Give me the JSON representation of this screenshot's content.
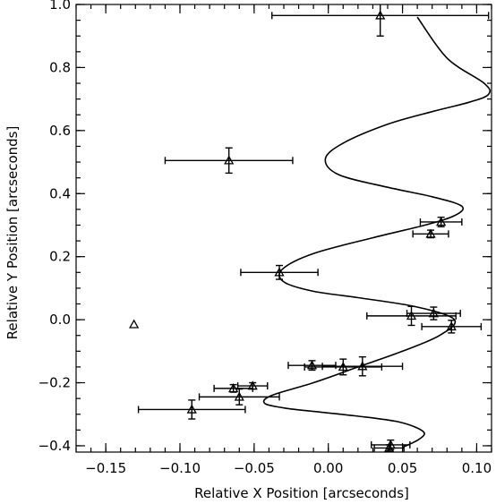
{
  "chart_data": {
    "type": "scatter",
    "xlabel": "Relative X Position [arcseconds]",
    "ylabel": "Relative Y Position [arcseconds]",
    "xlim": [
      -0.17,
      0.11
    ],
    "ylim": [
      -0.42,
      1.0
    ],
    "x_ticks": [
      -0.15,
      -0.1,
      -0.05,
      0.0,
      0.05,
      0.1
    ],
    "x_tick_labels": [
      "−0.15",
      "−0.10",
      "−0.05",
      "0.00",
      "0.05",
      "0.10"
    ],
    "y_ticks": [
      -0.4,
      -0.2,
      0.0,
      0.2,
      0.4,
      0.6,
      0.8,
      1.0
    ],
    "y_tick_labels": [
      "−0.4",
      "−0.2",
      "0.0",
      "0.2",
      "0.4",
      "0.6",
      "0.8",
      "1.0"
    ],
    "grid": false,
    "legend": "none",
    "points": [
      {
        "x": 0.035,
        "y": 0.965,
        "xerr": 0.073,
        "yerr": 0.065
      },
      {
        "x": -0.067,
        "y": 0.505,
        "xerr": 0.043,
        "yerr": 0.04
      },
      {
        "x": 0.076,
        "y": 0.31,
        "xerr": 0.014,
        "yerr": 0.015
      },
      {
        "x": 0.069,
        "y": 0.272,
        "xerr": 0.012,
        "yerr": 0.012
      },
      {
        "x": -0.033,
        "y": 0.15,
        "xerr": 0.026,
        "yerr": 0.022
      },
      {
        "x": 0.056,
        "y": 0.012,
        "xerr": 0.03,
        "yerr": 0.03
      },
      {
        "x": 0.071,
        "y": 0.02,
        "xerr": 0.018,
        "yerr": 0.02
      },
      {
        "x": 0.083,
        "y": -0.022,
        "xerr": 0.02,
        "yerr": 0.02
      },
      {
        "x": -0.131,
        "y": -0.015
      },
      {
        "x": -0.011,
        "y": -0.145,
        "xerr": 0.016,
        "yerr": 0.015
      },
      {
        "x": 0.01,
        "y": -0.15,
        "xerr": 0.026,
        "yerr": 0.025
      },
      {
        "x": 0.023,
        "y": -0.148,
        "xerr": 0.027,
        "yerr": 0.03
      },
      {
        "x": -0.051,
        "y": -0.21,
        "xerr": 0.01,
        "yerr": 0.01
      },
      {
        "x": -0.064,
        "y": -0.218,
        "xerr": 0.013,
        "yerr": 0.012
      },
      {
        "x": -0.06,
        "y": -0.245,
        "xerr": 0.027,
        "yerr": 0.025
      },
      {
        "x": -0.092,
        "y": -0.285,
        "xerr": 0.036,
        "yerr": 0.03
      },
      {
        "x": 0.042,
        "y": -0.397,
        "xerr": 0.013,
        "yerr": 0.015
      },
      {
        "x": 0.041,
        "y": -0.407,
        "xerr": 0.01,
        "yerr": 0.01
      }
    ],
    "model_curve": {
      "x": [
        0.05,
        0.061,
        0.064,
        0.048,
        0.018,
        -0.012,
        -0.03,
        -0.043,
        -0.038,
        -0.01,
        0.02,
        0.05,
        0.075,
        0.085,
        0.06,
        0.02,
        -0.01,
        -0.03,
        -0.031,
        -0.01,
        0.03,
        0.065,
        0.085,
        0.09,
        0.07,
        0.04,
        0.007,
        -0.002,
        0.01,
        0.04,
        0.07,
        0.095,
        0.108,
        0.105,
        0.08,
        0.06
      ],
      "y": [
        -0.405,
        -0.38,
        -0.355,
        -0.325,
        -0.305,
        -0.29,
        -0.28,
        -0.265,
        -0.24,
        -0.2,
        -0.15,
        -0.1,
        -0.05,
        0.0,
        0.04,
        0.07,
        0.09,
        0.12,
        0.16,
        0.21,
        0.26,
        0.3,
        0.33,
        0.36,
        0.39,
        0.42,
        0.46,
        0.51,
        0.56,
        0.62,
        0.66,
        0.69,
        0.715,
        0.75,
        0.83,
        0.96
      ]
    }
  }
}
